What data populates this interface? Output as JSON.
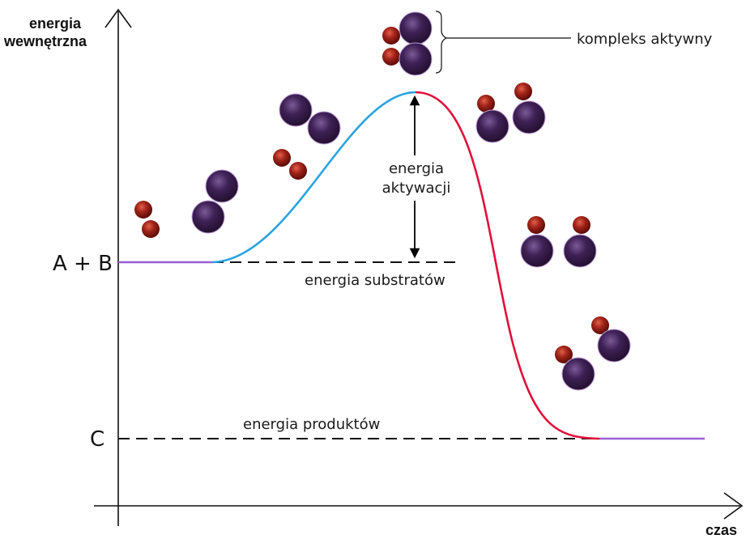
{
  "labels": {
    "y_axis_line1": "energia",
    "y_axis_line2": "wewnętrzna",
    "x_axis": "czas",
    "level_reactants": "A + B",
    "level_products": "C",
    "substrate_energy": "energia substratów",
    "product_energy": "energia produktów",
    "activation_line1": "energia",
    "activation_line2": "aktywacji",
    "activated_complex": "kompleks aktywny"
  },
  "colors": {
    "rising_curve": "#2aa3e0",
    "falling_curve": "#e0103a",
    "flat_segments": "#9b5fd6",
    "large_atom": "#3a1d52",
    "small_atom": "#8a1a10",
    "dashed_lines": "#111111"
  }
}
